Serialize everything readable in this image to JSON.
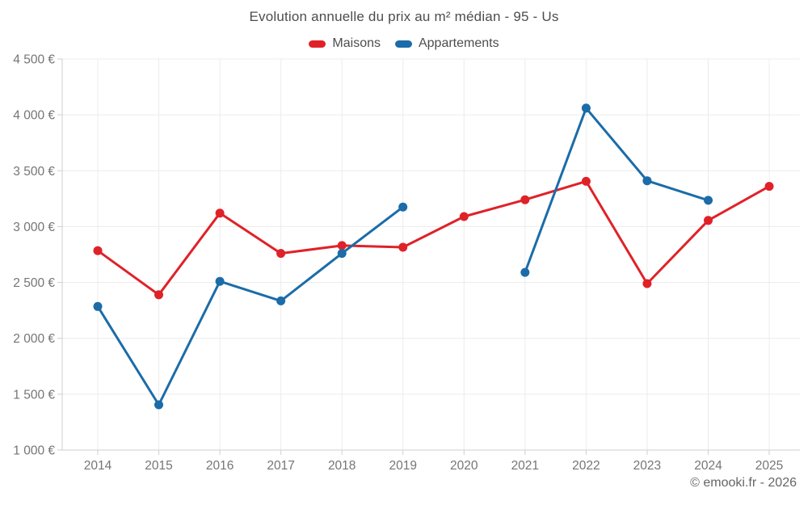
{
  "chart": {
    "title": "Evolution annuelle du prix au m² médian - 95 - Us",
    "copyright": "© emooki.fr - 2026"
  },
  "chart_data": {
    "type": "line",
    "title": "Evolution annuelle du prix au m² médian - 95 - Us",
    "xlabel": "",
    "ylabel": "",
    "categories": [
      "2014",
      "2015",
      "2016",
      "2017",
      "2018",
      "2019",
      "2020",
      "2021",
      "2022",
      "2023",
      "2024",
      "2025"
    ],
    "series": [
      {
        "name": "Maisons",
        "color": "#df2228",
        "values": [
          2785,
          2390,
          3120,
          2760,
          2830,
          2815,
          3090,
          3240,
          3405,
          2490,
          3055,
          3360
        ]
      },
      {
        "name": "Appartements",
        "color": "#1b6ca8",
        "values": [
          2285,
          1405,
          2510,
          2335,
          2760,
          3175,
          null,
          2590,
          4060,
          3410,
          3235,
          null
        ]
      }
    ],
    "ylim": [
      1000,
      4500
    ],
    "ytick_step": 500,
    "yticks": [
      {
        "value": 1000,
        "label": "1 000 €"
      },
      {
        "value": 1500,
        "label": "1 500 €"
      },
      {
        "value": 2000,
        "label": "2 000 €"
      },
      {
        "value": 2500,
        "label": "2 500 €"
      },
      {
        "value": 3000,
        "label": "3 000 €"
      },
      {
        "value": 3500,
        "label": "3 500 €"
      },
      {
        "value": 4000,
        "label": "4 000 €"
      },
      {
        "value": 4500,
        "label": "4 500 €"
      }
    ],
    "grid": true,
    "legend_position": "top",
    "currency": "€"
  },
  "colors": {
    "grid": "#ececec",
    "axis": "#cfcfcf",
    "tick_label": "#757575",
    "title_text": "#4d4d4d",
    "background": "#ffffff"
  }
}
